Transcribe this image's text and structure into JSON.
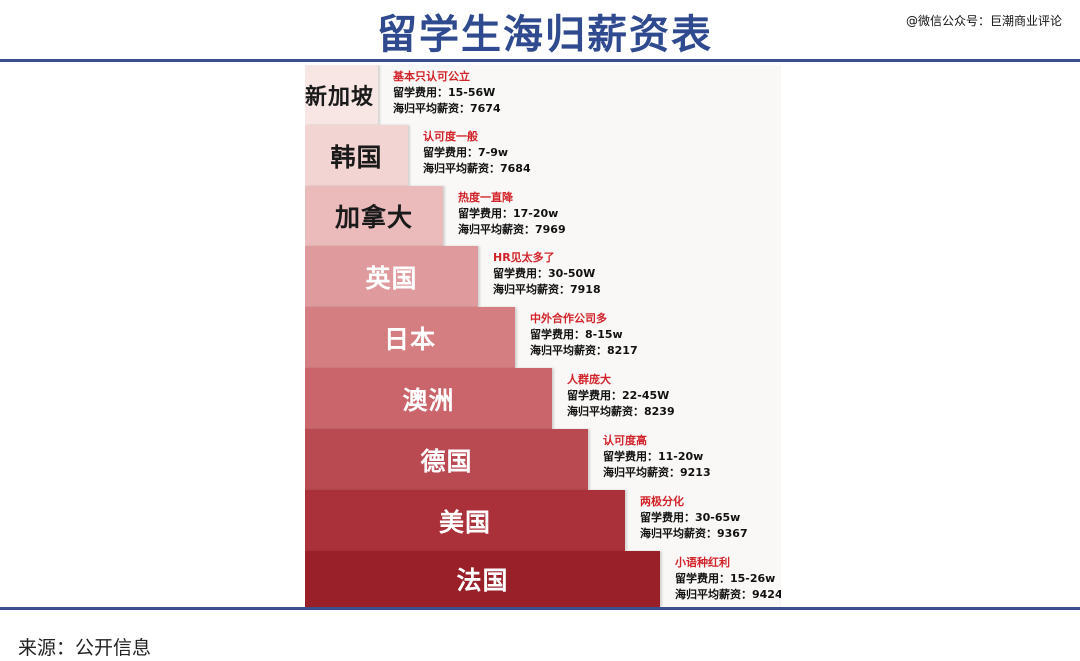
{
  "header": {
    "title": "留学生海归薪资表",
    "watermark": "@微信公众号：巨潮商业评论"
  },
  "chart_data": {
    "type": "bar",
    "title": "留学生海归薪资表",
    "cost_label": "留学费用：",
    "salary_label": "海归平均薪资：",
    "colors": [
      "#f7e6e4",
      "#f2d4d2",
      "#ebbbbb",
      "#de9a9c",
      "#d47e82",
      "#c9656b",
      "#b94a51",
      "#aa3039",
      "#992029"
    ],
    "text_colors": [
      "#1a1a1a",
      "#1a1a1a",
      "#1a1a1a",
      "#ffffff",
      "#ffffff",
      "#ffffff",
      "#ffffff",
      "#ffffff",
      "#ffffff"
    ],
    "categories": [
      "新加坡",
      "韩国",
      "加拿大",
      "英国",
      "日本",
      "澳洲",
      "德国",
      "美国",
      "法国"
    ],
    "items": [
      {
        "country": "新加坡",
        "note": "基本只认可公立",
        "cost": "15-56W",
        "salary": "7674"
      },
      {
        "country": "韩国",
        "note": "认可度一般",
        "cost": "7-9w",
        "salary": "7684"
      },
      {
        "country": "加拿大",
        "note": "热度一直降",
        "cost": "17-20w",
        "salary": "7969"
      },
      {
        "country": "英国",
        "note": "HR见太多了",
        "cost": "30-50W",
        "salary": "7918"
      },
      {
        "country": "日本",
        "note": "中外合作公司多",
        "cost": "8-15w",
        "salary": "8217"
      },
      {
        "country": "澳洲",
        "note": "人群庞大",
        "cost": "22-45W",
        "salary": "8239"
      },
      {
        "country": "德国",
        "note": "认可度高",
        "cost": "11-20w",
        "salary": "9213"
      },
      {
        "country": "美国",
        "note": "两极分化",
        "cost": "30-65w",
        "salary": "9367"
      },
      {
        "country": "法国",
        "note": "小语种红利",
        "cost": "15-26w",
        "salary": "9424"
      }
    ]
  },
  "footer": {
    "source": "来源：公开信息"
  }
}
